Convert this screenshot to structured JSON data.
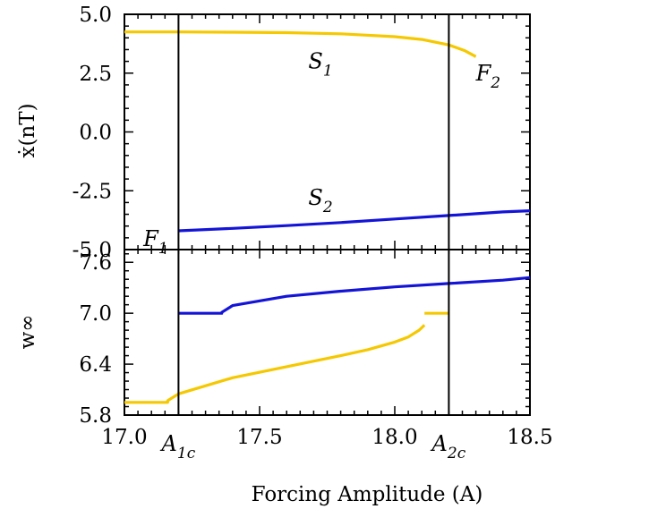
{
  "chart_data": [
    {
      "panel": "top",
      "type": "line",
      "ylabel": "ẋ(nT)",
      "xlim": [
        17.0,
        18.5
      ],
      "ylim": [
        -5.0,
        5.0
      ],
      "yticks": [
        5.0,
        2.5,
        0.0,
        -2.5,
        -5.0
      ],
      "ytick_labels": [
        "5.0",
        "2.5",
        "0.0",
        "-2.5",
        "-5.0"
      ],
      "colors": {
        "s1": "#f5c800",
        "s2": "#1414d8",
        "vlines": "#000000"
      },
      "series": [
        {
          "id": "s1",
          "x": [
            17.0,
            17.2,
            17.4,
            17.6,
            17.8,
            18.0,
            18.1,
            18.2,
            18.26,
            18.3
          ],
          "y": [
            4.25,
            4.25,
            4.24,
            4.22,
            4.17,
            4.05,
            3.93,
            3.7,
            3.45,
            3.2
          ]
        },
        {
          "id": "s2",
          "x": [
            17.2,
            17.4,
            17.6,
            17.8,
            18.0,
            18.2,
            18.4,
            18.5
          ],
          "y": [
            -4.2,
            -4.1,
            -3.98,
            -3.85,
            -3.7,
            -3.55,
            -3.4,
            -3.35
          ]
        }
      ],
      "annotations": [
        {
          "id": "S1",
          "base": "S",
          "sub": "1",
          "x": 17.68,
          "y": 3.0
        },
        {
          "id": "S2",
          "base": "S",
          "sub": "2",
          "x": 17.68,
          "y": -2.8
        },
        {
          "id": "F1",
          "base": "F",
          "sub": "1",
          "x": 17.07,
          "y": -4.55
        },
        {
          "id": "F2",
          "base": "F",
          "sub": "2",
          "x": 18.3,
          "y": 2.5
        }
      ]
    },
    {
      "panel": "bottom",
      "type": "line",
      "ylabel": "w∞",
      "xlabel": "Forcing Amplitude (A)",
      "xlim": [
        17.0,
        18.5
      ],
      "ylim": [
        5.8,
        7.75
      ],
      "yticks": [
        7.6,
        7.0,
        6.4,
        5.8
      ],
      "ytick_labels": [
        "7.6",
        "7.0",
        "6.4",
        "5.8"
      ],
      "xticks": [
        17.0,
        17.5,
        18.0,
        18.5
      ],
      "xtick_labels": [
        "17.0",
        "17.5",
        "18.0",
        "18.5"
      ],
      "colors": {
        "s1": "#f5c800",
        "s2": "#1414d8",
        "vlines": "#000000"
      },
      "series": [
        {
          "id": "s2",
          "x": [
            17.2,
            17.36,
            17.36,
            17.4,
            17.6,
            17.8,
            18.0,
            18.2,
            18.4,
            18.5
          ],
          "y": [
            7.0,
            7.0,
            7.01,
            7.09,
            7.2,
            7.26,
            7.31,
            7.35,
            7.39,
            7.42
          ]
        },
        {
          "id": "s1",
          "x": [
            17.0,
            17.16,
            17.16,
            17.2,
            17.4,
            17.6,
            17.8,
            17.9,
            18.0,
            18.05,
            18.09,
            18.11
          ],
          "y": [
            5.95,
            5.95,
            5.97,
            6.05,
            6.24,
            6.37,
            6.5,
            6.57,
            6.66,
            6.72,
            6.8,
            6.86
          ]
        },
        {
          "id": "s1-step",
          "x": [
            18.11,
            18.2
          ],
          "y": [
            7.0,
            7.0
          ]
        }
      ],
      "annotations": [
        {
          "id": "A1c",
          "base": "A",
          "sub": "1c",
          "x": 17.2
        },
        {
          "id": "A2c",
          "base": "A",
          "sub": "2c",
          "x": 18.2
        }
      ]
    }
  ],
  "vlines": [
    17.2,
    18.2
  ]
}
